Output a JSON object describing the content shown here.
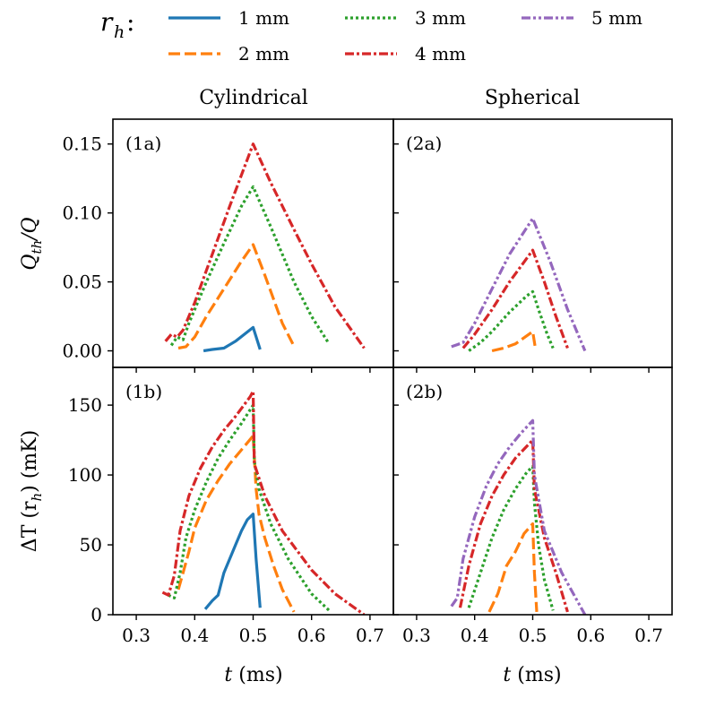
{
  "legend": {
    "title_main": "r",
    "title_sub": "h",
    "title_colon": ":",
    "entries": [
      {
        "label": "1 mm",
        "color": "#1f77b4",
        "dash": "solid"
      },
      {
        "label": "2 mm",
        "color": "#ff7f0e",
        "dash": "dashed"
      },
      {
        "label": "3 mm",
        "color": "#2ca02c",
        "dash": "dotted"
      },
      {
        "label": "4 mm",
        "color": "#d62728",
        "dash": "dashdot"
      },
      {
        "label": "5 mm",
        "color": "#9467bd",
        "dash": "dashdotdot"
      }
    ]
  },
  "columns": {
    "left": "Cylindrical",
    "right": "Spherical"
  },
  "axes": {
    "xlabel_var": "t",
    "xlabel_unit": " (ms)",
    "ylabel_top": {
      "a": "Q",
      "b": "th",
      "c": "/Q"
    },
    "ylabel_bottom": {
      "a": "ΔT (r",
      "b": "h",
      "c": ") (mK)"
    }
  },
  "chart_data": [
    {
      "id": "1a",
      "panel_label": "(1a)",
      "type": "line",
      "xlim": [
        0.26,
        0.74
      ],
      "ylim": [
        -0.012,
        0.168
      ],
      "xticks": [
        0.3,
        0.4,
        0.5,
        0.6,
        0.7
      ],
      "xticklabels": [
        "0.3",
        "0.4",
        "0.5",
        "0.6",
        "0.7"
      ],
      "yticks": [
        0,
        0.05,
        0.1,
        0.15
      ],
      "yticklabels": [
        "0.00",
        "0.05",
        "0.10",
        "0.15"
      ],
      "series": [
        {
          "name": "1 mm",
          "x": [
            0.415,
            0.43,
            0.45,
            0.47,
            0.5,
            0.512
          ],
          "y": [
            0.0,
            0.001,
            0.002,
            0.007,
            0.017,
            0.001
          ]
        },
        {
          "name": "2 mm",
          "x": [
            0.372,
            0.385,
            0.4,
            0.42,
            0.45,
            0.48,
            0.5,
            0.52,
            0.55,
            0.568
          ],
          "y": [
            0.002,
            0.003,
            0.01,
            0.025,
            0.045,
            0.065,
            0.077,
            0.055,
            0.02,
            0.005
          ]
        },
        {
          "name": "3 mm",
          "x": [
            0.36,
            0.37,
            0.38,
            0.39,
            0.42,
            0.45,
            0.48,
            0.5,
            0.53,
            0.57,
            0.6,
            0.63
          ],
          "y": [
            0.004,
            0.01,
            0.008,
            0.02,
            0.05,
            0.078,
            0.105,
            0.119,
            0.09,
            0.05,
            0.025,
            0.005
          ]
        },
        {
          "name": "4 mm",
          "x": [
            0.35,
            0.36,
            0.37,
            0.38,
            0.4,
            0.43,
            0.46,
            0.5,
            0.53,
            0.57,
            0.6,
            0.64,
            0.69
          ],
          "y": [
            0.007,
            0.012,
            0.01,
            0.015,
            0.035,
            0.07,
            0.105,
            0.15,
            0.122,
            0.088,
            0.063,
            0.032,
            0.002
          ]
        }
      ]
    },
    {
      "id": "2a",
      "panel_label": "(2a)",
      "type": "line",
      "xlim": [
        0.26,
        0.74
      ],
      "ylim": [
        -0.012,
        0.168
      ],
      "xticks": [
        0.3,
        0.4,
        0.5,
        0.6,
        0.7
      ],
      "xticklabels": [
        "0.3",
        "0.4",
        "0.5",
        "0.6",
        "0.7"
      ],
      "yticks": [
        0,
        0.05,
        0.1,
        0.15
      ],
      "yticklabels": [
        "",
        "",
        "",
        ""
      ],
      "series": [
        {
          "name": "2 mm",
          "x": [
            0.43,
            0.45,
            0.47,
            0.5,
            0.505
          ],
          "y": [
            0.0,
            0.002,
            0.005,
            0.014,
            0.001
          ]
        },
        {
          "name": "3 mm",
          "x": [
            0.39,
            0.41,
            0.43,
            0.46,
            0.49,
            0.5,
            0.51,
            0.525,
            0.535
          ],
          "y": [
            0.0,
            0.006,
            0.014,
            0.028,
            0.04,
            0.043,
            0.03,
            0.012,
            0.002
          ]
        },
        {
          "name": "4 mm",
          "x": [
            0.38,
            0.4,
            0.43,
            0.46,
            0.5,
            0.52,
            0.54,
            0.56
          ],
          "y": [
            0.002,
            0.012,
            0.03,
            0.05,
            0.073,
            0.05,
            0.025,
            0.002
          ]
        },
        {
          "name": "5 mm",
          "x": [
            0.36,
            0.38,
            0.4,
            0.43,
            0.46,
            0.5,
            0.53,
            0.56,
            0.59
          ],
          "y": [
            0.003,
            0.006,
            0.02,
            0.045,
            0.07,
            0.096,
            0.065,
            0.03,
            0.0
          ]
        }
      ]
    },
    {
      "id": "1b",
      "panel_label": "(1b)",
      "type": "line",
      "xlim": [
        0.26,
        0.74
      ],
      "ylim": [
        0,
        177
      ],
      "xticks": [
        0.3,
        0.4,
        0.5,
        0.6,
        0.7
      ],
      "xticklabels": [
        "0.3",
        "0.4",
        "0.5",
        "0.6",
        "0.7"
      ],
      "yticks": [
        0,
        50,
        100,
        150
      ],
      "yticklabels": [
        "0",
        "50",
        "100",
        "150"
      ],
      "series": [
        {
          "name": "1 mm",
          "x": [
            0.418,
            0.43,
            0.44,
            0.45,
            0.46,
            0.47,
            0.48,
            0.49,
            0.5,
            0.505,
            0.512
          ],
          "y": [
            4,
            10,
            14,
            30,
            40,
            50,
            60,
            68,
            72,
            40,
            5
          ]
        },
        {
          "name": "2 mm",
          "x": [
            0.372,
            0.38,
            0.39,
            0.4,
            0.42,
            0.44,
            0.46,
            0.48,
            0.5,
            0.505,
            0.51,
            0.52,
            0.535,
            0.55,
            0.57
          ],
          "y": [
            18,
            30,
            45,
            62,
            82,
            96,
            108,
            118,
            128,
            90,
            72,
            55,
            35,
            18,
            2
          ]
        },
        {
          "name": "3 mm",
          "x": [
            0.355,
            0.365,
            0.375,
            0.385,
            0.4,
            0.42,
            0.44,
            0.46,
            0.48,
            0.5,
            0.502,
            0.51,
            0.53,
            0.56,
            0.6,
            0.63
          ],
          "y": [
            14,
            12,
            30,
            55,
            75,
            95,
            112,
            125,
            137,
            150,
            110,
            90,
            65,
            40,
            15,
            3
          ]
        },
        {
          "name": "4 mm",
          "x": [
            0.345,
            0.355,
            0.365,
            0.375,
            0.39,
            0.41,
            0.43,
            0.45,
            0.47,
            0.495,
            0.5,
            0.502,
            0.52,
            0.55,
            0.6,
            0.64,
            0.69
          ],
          "y": [
            16,
            14,
            28,
            60,
            85,
            105,
            120,
            132,
            142,
            156,
            160,
            108,
            85,
            60,
            32,
            15,
            0
          ]
        }
      ]
    },
    {
      "id": "2b",
      "panel_label": "(2b)",
      "type": "line",
      "xlim": [
        0.26,
        0.74
      ],
      "ylim": [
        0,
        177
      ],
      "xticks": [
        0.3,
        0.4,
        0.5,
        0.6,
        0.7
      ],
      "xticklabels": [
        "0.3",
        "0.4",
        "0.5",
        "0.6",
        "0.7"
      ],
      "yticks": [
        0,
        50,
        100,
        150
      ],
      "yticklabels": [
        "",
        "",
        "",
        ""
      ],
      "series": [
        {
          "name": "2 mm",
          "x": [
            0.425,
            0.44,
            0.455,
            0.47,
            0.485,
            0.5,
            0.503,
            0.507
          ],
          "y": [
            2,
            15,
            35,
            45,
            58,
            65,
            30,
            2
          ]
        },
        {
          "name": "3 mm",
          "x": [
            0.39,
            0.41,
            0.43,
            0.45,
            0.47,
            0.49,
            0.5,
            0.503,
            0.51,
            0.52,
            0.535
          ],
          "y": [
            5,
            30,
            55,
            75,
            90,
            102,
            106,
            80,
            50,
            25,
            3
          ]
        },
        {
          "name": "4 mm",
          "x": [
            0.375,
            0.39,
            0.41,
            0.43,
            0.45,
            0.47,
            0.5,
            0.503,
            0.52,
            0.54,
            0.56
          ],
          "y": [
            5,
            35,
            65,
            85,
            100,
            112,
            125,
            90,
            55,
            30,
            2
          ]
        },
        {
          "name": "5 mm",
          "x": [
            0.36,
            0.37,
            0.38,
            0.4,
            0.42,
            0.44,
            0.46,
            0.48,
            0.5,
            0.503,
            0.52,
            0.55,
            0.59
          ],
          "y": [
            6,
            12,
            40,
            70,
            92,
            108,
            120,
            130,
            139,
            100,
            60,
            30,
            0
          ]
        }
      ]
    }
  ]
}
